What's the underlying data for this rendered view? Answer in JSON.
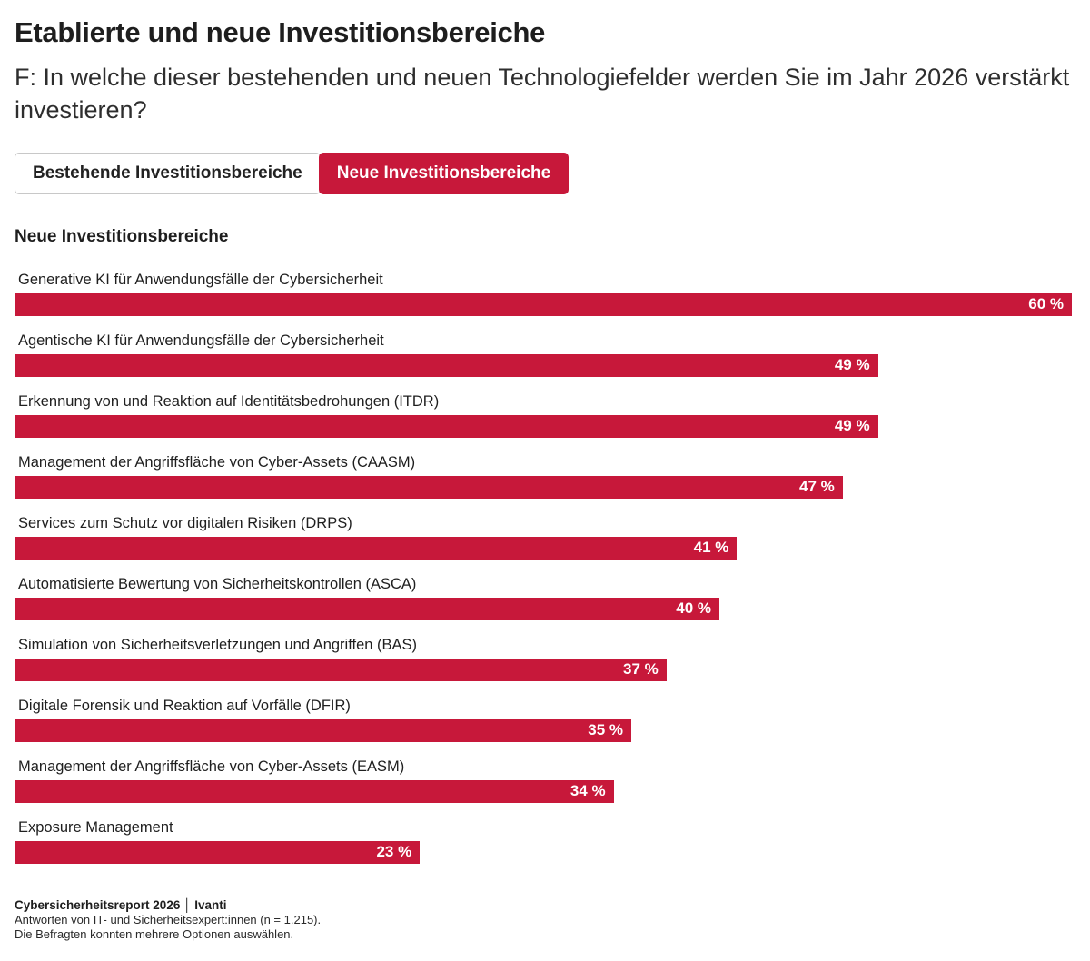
{
  "header": {
    "title": "Etablierte und neue Investitionsbereiche",
    "question": "F: In welche dieser bestehenden und neuen Technologiefelder werden Sie im Jahr 2026 verstärkt investieren?"
  },
  "tabs": [
    {
      "label": "Bestehende Investitionsbereiche",
      "active": false
    },
    {
      "label": "Neue Investitionsbereiche",
      "active": true
    }
  ],
  "section_title": "Neue Investitionsbereiche",
  "chart_data": {
    "type": "bar",
    "orientation": "horizontal",
    "title": "Neue Investitionsbereiche",
    "value_unit": "%",
    "scale_max": 60,
    "grid": false,
    "legend": false,
    "bar_color": "#C7183A",
    "categories": [
      "Generative KI für Anwendungsfälle der Cybersicherheit",
      "Agentische KI für Anwendungsfälle der Cybersicherheit",
      "Erkennung von und Reaktion auf Identitätsbedrohungen (ITDR)",
      "Management der Angriffsfläche von Cyber-Assets (CAASM)",
      "Services zum Schutz vor digitalen Risiken (DRPS)",
      "Automatisierte Bewertung von Sicherheitskontrollen (ASCA)",
      "Simulation von Sicherheitsverletzungen und Angriffen (BAS)",
      "Digitale Forensik und Reaktion auf Vorfälle (DFIR)",
      "Management der Angriffsfläche von Cyber-Assets (EASM)",
      "Exposure Management"
    ],
    "values": [
      60,
      49,
      49,
      47,
      41,
      40,
      37,
      35,
      34,
      23
    ],
    "value_labels": [
      "60 %",
      "49 %",
      "49 %",
      "47 %",
      "41 %",
      "40 %",
      "37 %",
      "35 %",
      "34 %",
      "23 %"
    ]
  },
  "footer": {
    "source": "Cybersicherheitsreport 2026 │ Ivanti",
    "note1": "Antworten von IT- und Sicherheitsexpert:innen (n = 1.215).",
    "note2": "Die Befragten konnten mehrere Optionen auswählen."
  },
  "colors": {
    "accent": "#C7183A",
    "title_text": "#1e1e1e",
    "tab_inactive_border": "#c8c8c8",
    "bar_value_text": "#ffffff",
    "background": "#ffffff"
  }
}
